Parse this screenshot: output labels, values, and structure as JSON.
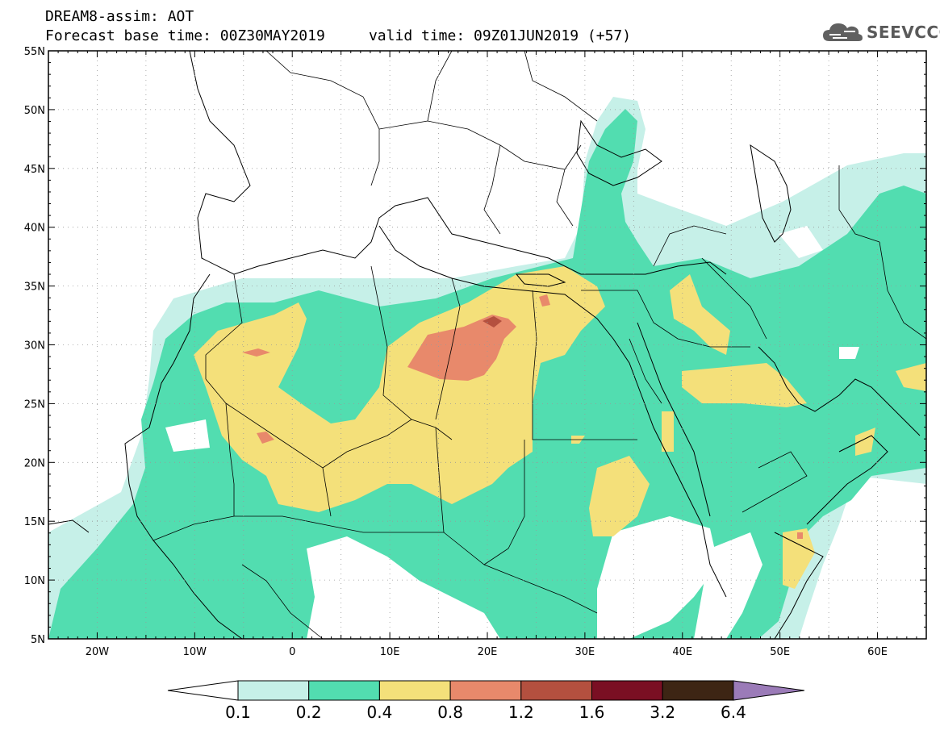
{
  "header": {
    "title": "DREAM8-assim: AOT",
    "base_time": "Forecast base time: 00Z30MAY2019",
    "valid_time": "valid time: 09Z01JUN2019 (+57)",
    "logo_text": "SEEVCCC",
    "logo_icon": "cloud-icon"
  },
  "map": {
    "lon_range": [
      -25,
      65
    ],
    "lat_range": [
      5,
      55
    ],
    "lon_ticks": [
      {
        "value": -20,
        "label": "20W"
      },
      {
        "value": -10,
        "label": "10W"
      },
      {
        "value": 0,
        "label": "0"
      },
      {
        "value": 10,
        "label": "10E"
      },
      {
        "value": 20,
        "label": "20E"
      },
      {
        "value": 30,
        "label": "30E"
      },
      {
        "value": 40,
        "label": "40E"
      },
      {
        "value": 50,
        "label": "50E"
      },
      {
        "value": 60,
        "label": "60E"
      }
    ],
    "lat_ticks": [
      {
        "value": 55,
        "label": "55N"
      },
      {
        "value": 50,
        "label": "50N"
      },
      {
        "value": 45,
        "label": "45N"
      },
      {
        "value": 40,
        "label": "40N"
      },
      {
        "value": 35,
        "label": "35N"
      },
      {
        "value": 30,
        "label": "30N"
      },
      {
        "value": 25,
        "label": "25N"
      },
      {
        "value": 20,
        "label": "20N"
      },
      {
        "value": 15,
        "label": "15N"
      },
      {
        "value": 10,
        "label": "10N"
      },
      {
        "value": 5,
        "label": "5N"
      }
    ],
    "gridlines": "dotted"
  },
  "colorbar": {
    "boundaries": [
      "0.1",
      "0.2",
      "0.4",
      "0.8",
      "1.2",
      "1.6",
      "3.2",
      "6.4"
    ],
    "colors": [
      "#ffffff",
      "#c6f0e8",
      "#52ddb0",
      "#f4e07a",
      "#e8896b",
      "#b4503f",
      "#7a0f23",
      "#3d2514",
      "#9b7bb8"
    ]
  }
}
